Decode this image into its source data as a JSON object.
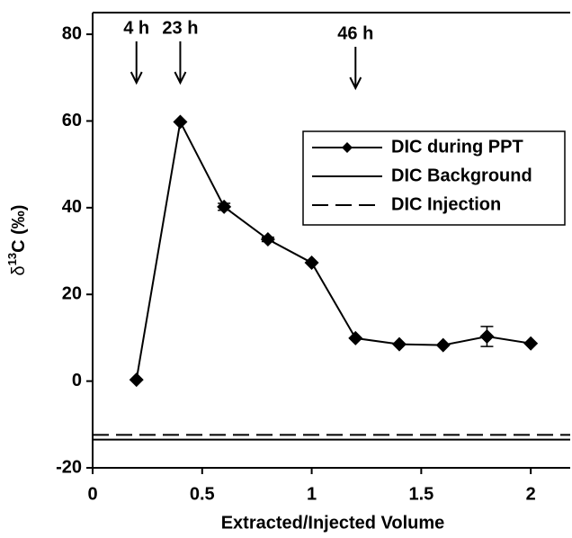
{
  "chart_data": {
    "type": "line",
    "xlabel": "Extracted/Injected Volume",
    "ylabel": {
      "prefix": "δ",
      "sup": "13",
      "suffix": "C (‰)"
    },
    "x": [
      0.2,
      0.4,
      0.6,
      0.8,
      1.0,
      1.2,
      1.4,
      1.6,
      1.8,
      2.0
    ],
    "series": [
      {
        "name": "DIC during PPT",
        "color": "#000000",
        "values": [
          0.3,
          59.8,
          40.2,
          32.7,
          27.3,
          9.9,
          8.5,
          8.3,
          10.3,
          8.7
        ],
        "errors": [
          0,
          0,
          0.8,
          0.5,
          0,
          0,
          0,
          0,
          2.3,
          0
        ]
      }
    ],
    "reference_lines": [
      {
        "name": "DIC Background",
        "value": -13.5,
        "dashed": false
      },
      {
        "name": "DIC Injection",
        "value": -12.4,
        "dashed": true
      }
    ],
    "annotations": [
      {
        "x": 0.2,
        "text": "4 h"
      },
      {
        "x": 0.4,
        "text": "23 h"
      },
      {
        "x": 1.2,
        "text": "46 h"
      }
    ],
    "xlim": [
      0,
      2.18
    ],
    "xticks": [
      0,
      0.5,
      1,
      1.5,
      2
    ],
    "ylim": [
      -20,
      85
    ],
    "yticks": [
      -20,
      0,
      20,
      40,
      60,
      80
    ],
    "legend": "upper right"
  }
}
